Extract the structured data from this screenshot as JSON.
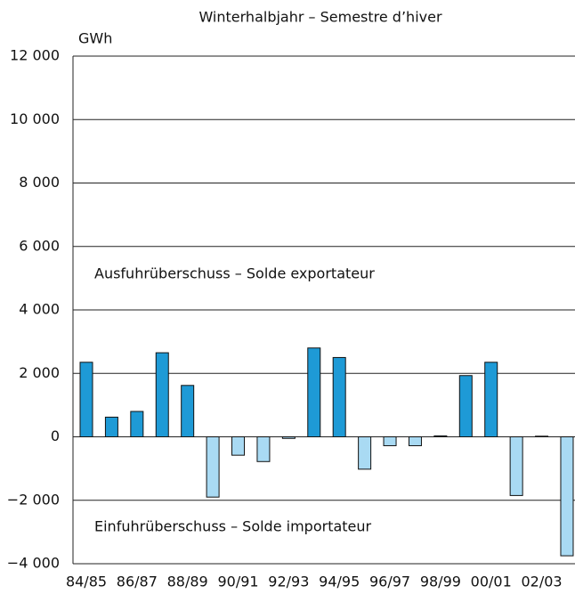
{
  "chart_data": {
    "type": "bar",
    "title": "Winterhalbjahr – Semestre d’hiver",
    "y_unit": "GWh",
    "annotations": [
      "Ausfuhrüberschuss – Solde exportateur",
      "Einfuhrüberschuss – Solde importateur"
    ],
    "categories": [
      "84/85",
      null,
      "86/87",
      null,
      "88/89",
      null,
      "90/91",
      null,
      "92/93",
      null,
      "94/95",
      null,
      "96/97",
      null,
      "98/99",
      null,
      "00/01",
      null,
      "02/03",
      null
    ],
    "values": [
      2350,
      620,
      800,
      2650,
      1620,
      -1900,
      -580,
      -780,
      -50,
      2800,
      2500,
      -1020,
      -280,
      -280,
      30,
      1930,
      2350,
      -1850,
      20,
      -3750
    ],
    "positive_color": "#1e9ad6",
    "negative_color": "#a9daf3",
    "ylim": [
      -4000,
      12000
    ],
    "yticks": [
      {
        "value": -4000,
        "label": "−4 000"
      },
      {
        "value": -2000,
        "label": "−2 000"
      },
      0,
      {
        "value": 2000,
        "label": "2 000"
      },
      {
        "value": 4000,
        "label": "4 000"
      },
      {
        "value": 6000,
        "label": "6 000"
      },
      {
        "value": 8000,
        "label": "8 000"
      },
      {
        "value": 10000,
        "label": "10 000"
      },
      {
        "value": 12000,
        "label": "12 000"
      }
    ],
    "grid": true
  }
}
